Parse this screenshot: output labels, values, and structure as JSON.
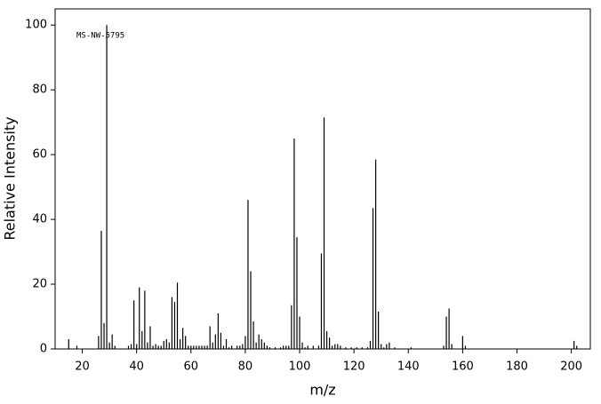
{
  "chart_data": {
    "type": "stick",
    "annotation": "MS-NW-5795",
    "x_label": "m/z",
    "y_label": "Relative Intensity",
    "color": "#000000",
    "x": [
      15,
      18,
      26,
      27,
      28,
      29,
      30,
      31,
      32,
      37,
      38,
      39,
      40,
      41,
      42,
      43,
      44,
      45,
      46,
      47,
      48,
      49,
      50,
      51,
      52,
      53,
      54,
      55,
      56,
      57,
      58,
      59,
      60,
      61,
      62,
      63,
      64,
      65,
      66,
      67,
      68,
      69,
      70,
      71,
      72,
      73,
      74,
      75,
      77,
      78,
      79,
      80,
      81,
      82,
      83,
      84,
      85,
      86,
      87,
      88,
      89,
      91,
      93,
      94,
      95,
      96,
      97,
      98,
      99,
      100,
      101,
      102,
      103,
      105,
      107,
      108,
      109,
      110,
      111,
      112,
      113,
      114,
      115,
      117,
      119,
      121,
      123,
      125,
      126,
      127,
      128,
      129,
      130,
      131,
      132,
      133,
      135,
      141,
      153,
      154,
      155,
      156,
      160,
      161,
      201,
      202
    ],
    "values": [
      3,
      1,
      4,
      36.5,
      8,
      100,
      2,
      4.5,
      1,
      1,
      1.5,
      15,
      1.5,
      19,
      5.5,
      18,
      2,
      7,
      1,
      1.5,
      1,
      1,
      2.5,
      3,
      2,
      16,
      14.5,
      20.5,
      3,
      6.5,
      4,
      1,
      1,
      1,
      1,
      1,
      1,
      1,
      1,
      7,
      2,
      4.5,
      11,
      5,
      1,
      3,
      0.5,
      1,
      1,
      1,
      1.5,
      4,
      46,
      24,
      8.5,
      2,
      4.5,
      3,
      2,
      1,
      0.5,
      0.5,
      0.5,
      1,
      1,
      1,
      13.5,
      65,
      34.5,
      10,
      2,
      0.5,
      1,
      1,
      1,
      29.5,
      71.5,
      5.5,
      3.5,
      1,
      1.5,
      1.5,
      1,
      0.5,
      0.5,
      0.5,
      0.5,
      0.5,
      2.5,
      43.5,
      58.5,
      11.5,
      1.5,
      0.5,
      1.5,
      2,
      0.5,
      0.5,
      1,
      10,
      12.5,
      1.5,
      4,
      1,
      2.5,
      1
    ],
    "xlim": [
      10,
      207
    ],
    "ylim": [
      0,
      105
    ],
    "xticks": [
      20,
      40,
      60,
      80,
      100,
      120,
      140,
      160,
      180,
      200
    ],
    "yticks": [
      0,
      20,
      40,
      60,
      80,
      100
    ]
  }
}
